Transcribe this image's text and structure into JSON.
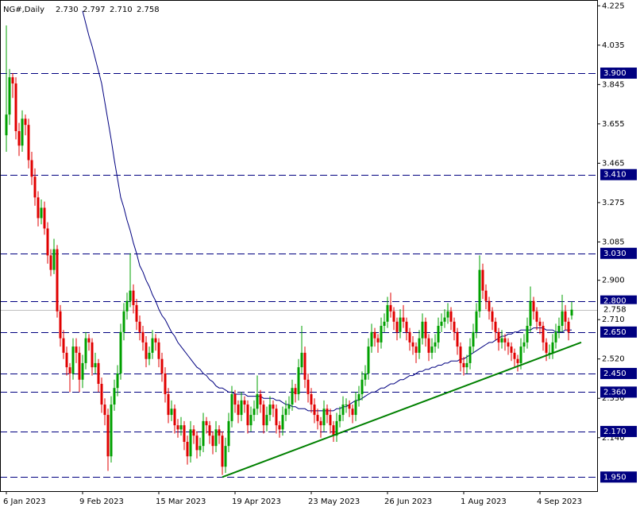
{
  "chart_data": {
    "type": "candlestick",
    "title": "NG#,Daily",
    "header_values": [
      "2.730",
      "2.797",
      "2.710",
      "2.758"
    ],
    "up_color": "#00a000",
    "down_color": "#e00000",
    "ylim": [
      1.882,
      4.253
    ],
    "yticks": [
      4.225,
      4.035,
      3.845,
      3.655,
      3.465,
      3.275,
      3.085,
      {
        "value": 2.9,
        "label": "2.900"
      },
      {
        "value": 2.71,
        "label": "2.710"
      },
      {
        "value": 2.52,
        "label": "2.520"
      },
      {
        "value": 2.33,
        "label": "2.330"
      },
      {
        "value": 2.14,
        "label": "2.140"
      }
    ],
    "level_color": "#000080",
    "levels": [
      {
        "value": 3.9,
        "label": "3.900"
      },
      {
        "value": 3.41,
        "label": "3.410"
      },
      {
        "value": 3.03,
        "label": "3.030"
      },
      {
        "value": 2.8,
        "label": "2.800"
      },
      {
        "value": 2.65,
        "label": "2.650"
      },
      {
        "value": 2.45,
        "label": "2.450"
      },
      {
        "value": 2.36,
        "label": "2.360"
      },
      {
        "value": 2.17,
        "label": "2.170"
      },
      {
        "value": 1.95,
        "label": "1.950"
      }
    ],
    "last": {
      "value": 2.758,
      "label": "2.758"
    },
    "categories": [
      "6 Jan 2023",
      null,
      null,
      null,
      null,
      null,
      null,
      null,
      null,
      null,
      null,
      null,
      null,
      null,
      null,
      null,
      null,
      null,
      null,
      null,
      null,
      null,
      null,
      null,
      "9 Feb 2023",
      null,
      null,
      null,
      null,
      null,
      null,
      null,
      null,
      null,
      null,
      null,
      null,
      null,
      null,
      null,
      null,
      null,
      null,
      null,
      null,
      null,
      null,
      null,
      "15 Mar 2023",
      null,
      null,
      null,
      null,
      null,
      null,
      null,
      null,
      null,
      null,
      null,
      null,
      null,
      null,
      null,
      null,
      null,
      null,
      null,
      null,
      null,
      null,
      null,
      "19 Apr 2023",
      null,
      null,
      null,
      null,
      null,
      null,
      null,
      null,
      null,
      null,
      null,
      null,
      null,
      null,
      null,
      null,
      null,
      null,
      null,
      null,
      null,
      null,
      null,
      "23 May 2023",
      null,
      null,
      null,
      null,
      null,
      null,
      null,
      null,
      null,
      null,
      null,
      null,
      null,
      null,
      null,
      null,
      null,
      null,
      null,
      null,
      null,
      null,
      null,
      "26 Jun 2023",
      null,
      null,
      null,
      null,
      null,
      null,
      null,
      null,
      null,
      null,
      null,
      null,
      null,
      null,
      null,
      null,
      null,
      null,
      null,
      null,
      null,
      null,
      null,
      "1 Aug 2023",
      null,
      null,
      null,
      null,
      null,
      null,
      null,
      null,
      null,
      null,
      null,
      null,
      null,
      null,
      null,
      null,
      null,
      null,
      null,
      null,
      null,
      null,
      null,
      "4 Sep 2023",
      null,
      null,
      null,
      null,
      null,
      null,
      null,
      null,
      null,
      null
    ],
    "candles": [
      [
        3.6,
        4.13,
        3.52,
        3.7
      ],
      [
        3.7,
        3.92,
        3.65,
        3.88
      ],
      [
        3.88,
        3.9,
        3.78,
        3.85
      ],
      [
        3.85,
        3.88,
        3.58,
        3.62
      ],
      [
        3.62,
        3.66,
        3.5,
        3.55
      ],
      [
        3.55,
        3.72,
        3.52,
        3.68
      ],
      [
        3.68,
        3.7,
        3.6,
        3.65
      ],
      [
        3.65,
        3.68,
        3.44,
        3.48
      ],
      [
        3.48,
        3.52,
        3.36,
        3.4
      ],
      [
        3.4,
        3.44,
        3.26,
        3.3
      ],
      [
        3.3,
        3.33,
        3.16,
        3.2
      ],
      [
        3.2,
        3.29,
        3.17,
        3.25
      ],
      [
        3.25,
        3.28,
        3.12,
        3.15
      ],
      [
        3.15,
        3.18,
        2.98,
        3.02
      ],
      [
        3.02,
        3.05,
        2.92,
        2.95
      ],
      [
        2.95,
        3.1,
        2.93,
        3.05
      ],
      [
        3.05,
        3.07,
        2.72,
        2.75
      ],
      [
        2.75,
        2.78,
        2.58,
        2.62
      ],
      [
        2.62,
        2.66,
        2.52,
        2.55
      ],
      [
        2.55,
        2.58,
        2.44,
        2.48
      ],
      [
        2.48,
        2.5,
        2.36,
        2.45
      ],
      [
        2.45,
        2.62,
        2.42,
        2.58
      ],
      [
        2.58,
        2.62,
        2.5,
        2.55
      ],
      [
        2.55,
        2.58,
        2.36,
        2.42
      ],
      [
        2.42,
        2.54,
        2.38,
        2.5
      ],
      [
        2.5,
        2.65,
        2.47,
        2.62
      ],
      [
        2.62,
        2.64,
        2.56,
        2.6
      ],
      [
        2.6,
        2.62,
        2.44,
        2.48
      ],
      [
        2.48,
        2.55,
        2.45,
        2.5
      ],
      [
        2.5,
        2.52,
        2.36,
        2.4
      ],
      [
        2.4,
        2.43,
        2.26,
        2.3
      ],
      [
        2.3,
        2.33,
        2.2,
        2.25
      ],
      [
        2.25,
        2.28,
        1.98,
        2.05
      ],
      [
        2.05,
        2.34,
        2.02,
        2.3
      ],
      [
        2.3,
        2.42,
        2.27,
        2.38
      ],
      [
        2.38,
        2.49,
        2.34,
        2.45
      ],
      [
        2.45,
        2.69,
        2.42,
        2.65
      ],
      [
        2.65,
        2.79,
        2.61,
        2.75
      ],
      [
        2.75,
        2.84,
        2.71,
        2.8
      ],
      [
        2.8,
        3.03,
        2.77,
        2.85
      ],
      [
        2.85,
        2.88,
        2.74,
        2.78
      ],
      [
        2.78,
        2.81,
        2.66,
        2.7
      ],
      [
        2.7,
        2.73,
        2.61,
        2.65
      ],
      [
        2.65,
        2.68,
        2.56,
        2.6
      ],
      [
        2.6,
        2.63,
        2.48,
        2.52
      ],
      [
        2.52,
        2.58,
        2.49,
        2.55
      ],
      [
        2.55,
        2.66,
        2.52,
        2.62
      ],
      [
        2.62,
        2.64,
        2.56,
        2.6
      ],
      [
        2.6,
        2.62,
        2.48,
        2.52
      ],
      [
        2.52,
        2.55,
        2.41,
        2.45
      ],
      [
        2.45,
        2.48,
        2.31,
        2.35
      ],
      [
        2.35,
        2.38,
        2.21,
        2.25
      ],
      [
        2.25,
        2.32,
        2.22,
        2.28
      ],
      [
        2.28,
        2.3,
        2.16,
        2.2
      ],
      [
        2.2,
        2.23,
        2.14,
        2.18
      ],
      [
        2.18,
        2.24,
        2.15,
        2.2
      ],
      [
        2.2,
        2.22,
        2.08,
        2.12
      ],
      [
        2.12,
        2.15,
        2.01,
        2.05
      ],
      [
        2.05,
        2.22,
        2.02,
        2.18
      ],
      [
        2.18,
        2.2,
        2.11,
        2.15
      ],
      [
        2.15,
        2.17,
        2.04,
        2.08
      ],
      [
        2.08,
        2.14,
        2.05,
        2.1
      ],
      [
        2.1,
        2.26,
        2.07,
        2.22
      ],
      [
        2.22,
        2.24,
        2.16,
        2.2
      ],
      [
        2.2,
        2.22,
        2.11,
        2.15
      ],
      [
        2.15,
        2.17,
        2.06,
        2.1
      ],
      [
        2.1,
        2.22,
        2.07,
        2.18
      ],
      [
        2.18,
        2.2,
        2.11,
        2.15
      ],
      [
        2.15,
        2.17,
        1.96,
        2.0
      ],
      [
        2.0,
        2.14,
        1.97,
        2.1
      ],
      [
        2.1,
        2.26,
        2.07,
        2.22
      ],
      [
        2.22,
        2.39,
        2.19,
        2.35
      ],
      [
        2.35,
        2.37,
        2.26,
        2.3
      ],
      [
        2.3,
        2.32,
        2.21,
        2.25
      ],
      [
        2.25,
        2.36,
        2.22,
        2.32
      ],
      [
        2.32,
        2.34,
        2.26,
        2.3
      ],
      [
        2.3,
        2.32,
        2.16,
        2.2
      ],
      [
        2.2,
        2.29,
        2.17,
        2.25
      ],
      [
        2.25,
        2.32,
        2.22,
        2.28
      ],
      [
        2.28,
        2.44,
        2.25,
        2.35
      ],
      [
        2.35,
        2.37,
        2.26,
        2.3
      ],
      [
        2.3,
        2.32,
        2.16,
        2.2
      ],
      [
        2.2,
        2.29,
        2.17,
        2.25
      ],
      [
        2.25,
        2.34,
        2.22,
        2.3
      ],
      [
        2.3,
        2.32,
        2.24,
        2.28
      ],
      [
        2.28,
        2.3,
        2.16,
        2.2
      ],
      [
        2.2,
        2.22,
        2.14,
        2.18
      ],
      [
        2.18,
        2.29,
        2.15,
        2.25
      ],
      [
        2.25,
        2.32,
        2.22,
        2.28
      ],
      [
        2.28,
        2.34,
        2.25,
        2.3
      ],
      [
        2.3,
        2.42,
        2.27,
        2.38
      ],
      [
        2.38,
        2.4,
        2.31,
        2.35
      ],
      [
        2.35,
        2.52,
        2.32,
        2.48
      ],
      [
        2.48,
        2.68,
        2.45,
        2.55
      ],
      [
        2.55,
        2.58,
        2.38,
        2.42
      ],
      [
        2.42,
        2.45,
        2.31,
        2.35
      ],
      [
        2.35,
        2.38,
        2.26,
        2.3
      ],
      [
        2.3,
        2.33,
        2.21,
        2.25
      ],
      [
        2.25,
        2.28,
        2.18,
        2.22
      ],
      [
        2.22,
        2.24,
        2.14,
        2.2
      ],
      [
        2.2,
        2.32,
        2.17,
        2.28
      ],
      [
        2.28,
        2.3,
        2.21,
        2.25
      ],
      [
        2.25,
        2.28,
        2.16,
        2.2
      ],
      [
        2.2,
        2.22,
        2.12,
        2.15
      ],
      [
        2.15,
        2.26,
        2.12,
        2.22
      ],
      [
        2.22,
        2.29,
        2.19,
        2.25
      ],
      [
        2.25,
        2.34,
        2.22,
        2.3
      ],
      [
        2.3,
        2.33,
        2.26,
        2.3
      ],
      [
        2.3,
        2.32,
        2.24,
        2.28
      ],
      [
        2.28,
        2.3,
        2.21,
        2.25
      ],
      [
        2.25,
        2.36,
        2.22,
        2.32
      ],
      [
        2.32,
        2.39,
        2.29,
        2.35
      ],
      [
        2.35,
        2.46,
        2.32,
        2.42
      ],
      [
        2.42,
        2.49,
        2.39,
        2.45
      ],
      [
        2.45,
        2.62,
        2.42,
        2.58
      ],
      [
        2.58,
        2.69,
        2.55,
        2.65
      ],
      [
        2.65,
        2.67,
        2.58,
        2.62
      ],
      [
        2.62,
        2.64,
        2.55,
        2.6
      ],
      [
        2.6,
        2.72,
        2.57,
        2.68
      ],
      [
        2.68,
        2.74,
        2.65,
        2.7
      ],
      [
        2.7,
        2.82,
        2.67,
        2.78
      ],
      [
        2.78,
        2.84,
        2.72,
        2.75
      ],
      [
        2.75,
        2.77,
        2.66,
        2.7
      ],
      [
        2.7,
        2.72,
        2.61,
        2.65
      ],
      [
        2.65,
        2.76,
        2.62,
        2.72
      ],
      [
        2.72,
        2.78,
        2.67,
        2.7
      ],
      [
        2.7,
        2.72,
        2.61,
        2.65
      ],
      [
        2.65,
        2.67,
        2.56,
        2.6
      ],
      [
        2.6,
        2.63,
        2.54,
        2.58
      ],
      [
        2.58,
        2.6,
        2.5,
        2.55
      ],
      [
        2.55,
        2.66,
        2.52,
        2.62
      ],
      [
        2.62,
        2.74,
        2.59,
        2.7
      ],
      [
        2.7,
        2.72,
        2.58,
        2.62
      ],
      [
        2.62,
        2.64,
        2.51,
        2.55
      ],
      [
        2.55,
        2.62,
        2.52,
        2.58
      ],
      [
        2.58,
        2.64,
        2.55,
        2.6
      ],
      [
        2.6,
        2.72,
        2.57,
        2.68
      ],
      [
        2.68,
        2.74,
        2.65,
        2.7
      ],
      [
        2.7,
        2.76,
        2.67,
        2.72
      ],
      [
        2.72,
        2.79,
        2.69,
        2.75
      ],
      [
        2.75,
        2.77,
        2.66,
        2.7
      ],
      [
        2.7,
        2.72,
        2.61,
        2.65
      ],
      [
        2.65,
        2.67,
        2.54,
        2.58
      ],
      [
        2.58,
        2.6,
        2.46,
        2.5
      ],
      [
        2.5,
        2.53,
        2.44,
        2.48
      ],
      [
        2.48,
        2.54,
        2.45,
        2.5
      ],
      [
        2.5,
        2.62,
        2.47,
        2.58
      ],
      [
        2.58,
        2.69,
        2.55,
        2.65
      ],
      [
        2.65,
        2.79,
        2.62,
        2.75
      ],
      [
        2.75,
        3.02,
        2.72,
        2.95
      ],
      [
        2.95,
        2.98,
        2.81,
        2.85
      ],
      [
        2.85,
        2.88,
        2.76,
        2.8
      ],
      [
        2.8,
        2.82,
        2.71,
        2.75
      ],
      [
        2.75,
        2.77,
        2.66,
        2.7
      ],
      [
        2.7,
        2.72,
        2.61,
        2.65
      ],
      [
        2.65,
        2.67,
        2.56,
        2.6
      ],
      [
        2.6,
        2.66,
        2.57,
        2.62
      ],
      [
        2.62,
        2.64,
        2.56,
        2.6
      ],
      [
        2.6,
        2.62,
        2.54,
        2.58
      ],
      [
        2.58,
        2.6,
        2.51,
        2.55
      ],
      [
        2.55,
        2.57,
        2.48,
        2.52
      ],
      [
        2.52,
        2.54,
        2.46,
        2.5
      ],
      [
        2.5,
        2.62,
        2.47,
        2.58
      ],
      [
        2.58,
        2.64,
        2.55,
        2.6
      ],
      [
        2.6,
        2.72,
        2.57,
        2.68
      ],
      [
        2.68,
        2.87,
        2.65,
        2.8
      ],
      [
        2.8,
        2.82,
        2.71,
        2.75
      ],
      [
        2.75,
        2.77,
        2.66,
        2.7
      ],
      [
        2.7,
        2.72,
        2.64,
        2.68
      ],
      [
        2.68,
        2.7,
        2.56,
        2.6
      ],
      [
        2.6,
        2.62,
        2.51,
        2.55
      ],
      [
        2.55,
        2.59,
        2.52,
        2.55
      ],
      [
        2.55,
        2.64,
        2.52,
        2.6
      ],
      [
        2.6,
        2.69,
        2.57,
        2.65
      ],
      [
        2.65,
        2.72,
        2.62,
        2.68
      ],
      [
        2.68,
        2.83,
        2.65,
        2.75
      ],
      [
        2.75,
        2.78,
        2.66,
        2.7
      ],
      [
        2.7,
        2.72,
        2.61,
        2.65
      ],
      [
        2.73,
        2.797,
        2.71,
        2.758
      ]
    ],
    "ma": {
      "color": "#000080",
      "values": [
        null,
        null,
        null,
        null,
        null,
        null,
        null,
        null,
        null,
        null,
        null,
        null,
        null,
        null,
        null,
        null,
        null,
        null,
        null,
        null,
        null,
        null,
        null,
        null,
        4.2,
        4.14,
        4.08,
        4.03,
        3.97,
        3.91,
        3.85,
        3.76,
        3.67,
        3.58,
        3.48,
        3.39,
        3.3,
        3.25,
        3.19,
        3.14,
        3.08,
        3.03,
        2.97,
        2.94,
        2.9,
        2.87,
        2.83,
        2.8,
        2.76,
        2.73,
        2.71,
        2.68,
        2.65,
        2.63,
        2.6,
        2.58,
        2.56,
        2.54,
        2.52,
        2.5,
        2.48,
        2.47,
        2.45,
        2.44,
        2.42,
        2.41,
        2.39,
        2.38,
        2.38,
        2.37,
        2.36,
        2.36,
        2.35,
        2.35,
        2.35,
        2.35,
        2.34,
        2.34,
        2.34,
        2.34,
        2.34,
        2.33,
        2.33,
        2.33,
        2.33,
        2.32,
        2.32,
        2.31,
        2.3,
        2.3,
        2.29,
        2.29,
        2.28,
        2.28,
        2.28,
        2.27,
        2.27,
        2.27,
        2.27,
        2.27,
        2.27,
        2.27,
        2.27,
        2.27,
        2.28,
        2.28,
        2.29,
        2.29,
        2.3,
        2.31,
        2.32,
        2.32,
        2.33,
        2.34,
        2.35,
        2.36,
        2.36,
        2.37,
        2.38,
        2.38,
        2.39,
        2.4,
        2.4,
        2.41,
        2.42,
        2.42,
        2.43,
        2.44,
        2.44,
        2.45,
        2.46,
        2.46,
        2.47,
        2.47,
        2.48,
        2.48,
        2.49,
        2.49,
        2.5,
        2.5,
        2.51,
        2.51,
        2.51,
        2.52,
        2.52,
        2.53,
        2.54,
        2.55,
        2.56,
        2.57,
        2.58,
        2.59,
        2.6,
        2.6,
        2.61,
        2.62,
        2.63,
        2.63,
        2.64,
        2.64,
        2.65,
        2.65,
        2.66,
        2.66,
        2.66,
        2.66,
        2.67,
        2.67,
        2.67,
        2.67,
        2.66,
        2.66,
        2.66,
        2.65,
        2.65,
        2.65,
        2.66,
        2.66,
        2.66
      ]
    },
    "trendline": {
      "color": "#008000",
      "x": [
        68,
        181
      ],
      "values": [
        1.95,
        2.6
      ]
    }
  }
}
